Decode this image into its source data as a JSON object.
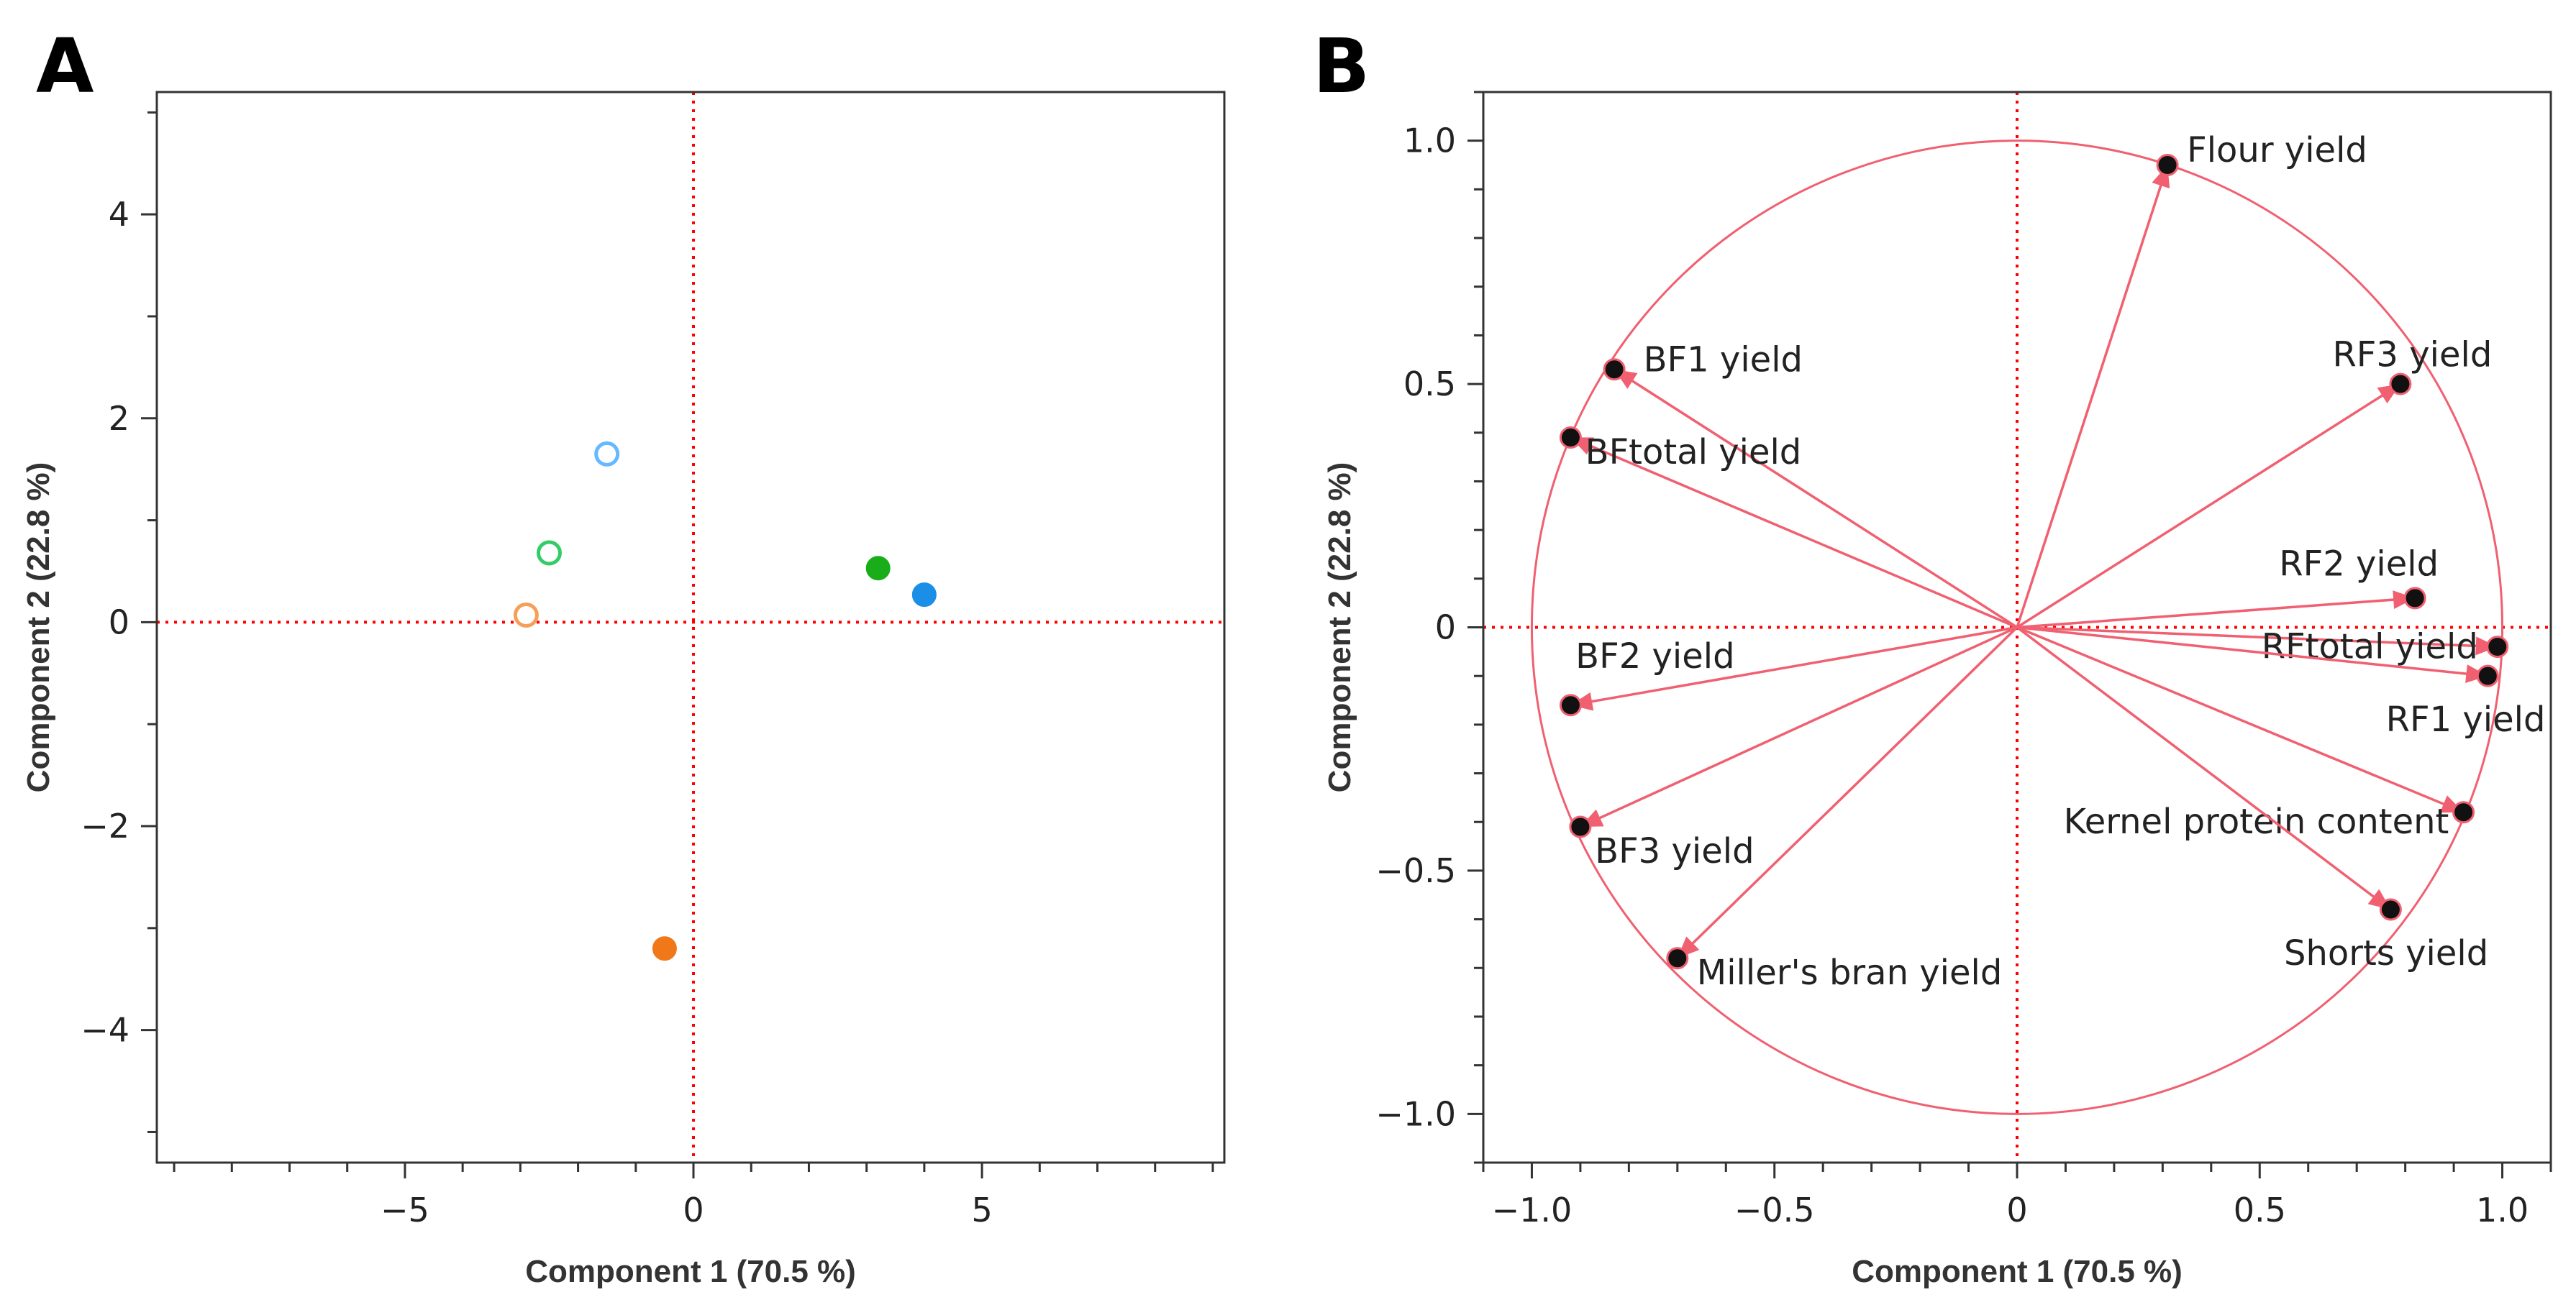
{
  "colors": {
    "frame": "#333333",
    "tick_label": "#222222",
    "axis_title": "#333333",
    "guide": "#ff0000",
    "loading_line": "#f06070",
    "loading_dot": "#111111",
    "circle": "#f06070"
  },
  "chart_data": [
    {
      "panel": "A",
      "type": "scatter",
      "title": "",
      "xlabel": "Component 1  (70.5 %)",
      "ylabel": "Component 2  (22.8 %)",
      "xlim": [
        -9.3,
        9.2
      ],
      "ylim": [
        -5.3,
        5.2
      ],
      "xticks": [
        -5,
        0,
        5
      ],
      "xtick_labels": [
        "−5",
        "0",
        "5"
      ],
      "yticks": [
        -4,
        -2,
        0,
        2,
        4
      ],
      "ytick_labels": [
        "−4",
        "−2",
        "0",
        "2",
        "4"
      ],
      "minor_step": 1,
      "grid": false,
      "reference_lines": {
        "x": 0,
        "y": 0
      },
      "series": [
        {
          "name": "light blue open",
          "x": [
            -1.5
          ],
          "y": [
            1.65
          ],
          "color": "#66b8ff",
          "marker": "open-circle"
        },
        {
          "name": "green open",
          "x": [
            -2.5
          ],
          "y": [
            0.68
          ],
          "color": "#33cc66",
          "marker": "open-circle"
        },
        {
          "name": "orange open",
          "x": [
            -2.9
          ],
          "y": [
            0.07
          ],
          "color": "#f5a05a",
          "marker": "open-circle"
        },
        {
          "name": "green filled",
          "x": [
            3.2
          ],
          "y": [
            0.53
          ],
          "color": "#1aad1a",
          "marker": "filled-circle"
        },
        {
          "name": "blue filled",
          "x": [
            4.0
          ],
          "y": [
            0.27
          ],
          "color": "#1b8fe8",
          "marker": "filled-circle"
        },
        {
          "name": "orange filled",
          "x": [
            -0.5
          ],
          "y": [
            -3.2
          ],
          "color": "#f07818",
          "marker": "filled-circle"
        }
      ]
    },
    {
      "panel": "B",
      "type": "scatter",
      "title": "",
      "xlabel": "Component 1  (70.5 %)",
      "ylabel": "Component 2  (22.8 %)",
      "xlim": [
        -1.1,
        1.1
      ],
      "ylim": [
        -1.1,
        1.1
      ],
      "xticks": [
        -1.0,
        -0.5,
        0,
        0.5,
        1.0
      ],
      "xtick_labels": [
        "−1.0",
        "−0.5",
        "0",
        "0.5",
        "1.0"
      ],
      "yticks": [
        -1.0,
        -0.5,
        0,
        0.5,
        1.0
      ],
      "ytick_labels": [
        "−1.0",
        "−0.5",
        "0",
        "0.5",
        "1.0"
      ],
      "minor_step": 0.1,
      "grid": false,
      "reference_lines": {
        "x": 0,
        "y": 0
      },
      "unit_circle": true,
      "loadings": [
        {
          "label": "Flour yield",
          "x": 0.31,
          "y": 0.95,
          "anchor": "start",
          "dx": 0.04,
          "dy": 0.03
        },
        {
          "label": "RF3 yield",
          "x": 0.79,
          "y": 0.5,
          "anchor": "start",
          "dx": -0.14,
          "dy": 0.06
        },
        {
          "label": "RF2 yield",
          "x": 0.82,
          "y": 0.06,
          "anchor": "start",
          "dx": -0.28,
          "dy": 0.07
        },
        {
          "label": "RFtotal yield",
          "x": 0.99,
          "y": -0.04,
          "anchor": "end",
          "dx": -0.04,
          "dy": 0.0
        },
        {
          "label": "RF1 yield",
          "x": 0.97,
          "y": -0.1,
          "anchor": "start",
          "dx": -0.21,
          "dy": -0.09
        },
        {
          "label": "Kernel protein content",
          "x": 0.92,
          "y": -0.38,
          "anchor": "end",
          "dx": -0.03,
          "dy": -0.02
        },
        {
          "label": "Shorts yield",
          "x": 0.77,
          "y": -0.58,
          "anchor": "start",
          "dx": -0.22,
          "dy": -0.09
        },
        {
          "label": "BF1 yield",
          "x": -0.83,
          "y": 0.53,
          "anchor": "start",
          "dx": 0.06,
          "dy": 0.02
        },
        {
          "label": "BFtotal yield",
          "x": -0.92,
          "y": 0.39,
          "anchor": "start",
          "dx": 0.03,
          "dy": -0.03
        },
        {
          "label": "BF2 yield",
          "x": -0.92,
          "y": -0.16,
          "anchor": "start",
          "dx": 0.01,
          "dy": 0.1
        },
        {
          "label": "BF3 yield",
          "x": -0.9,
          "y": -0.41,
          "anchor": "start",
          "dx": 0.03,
          "dy": -0.05
        },
        {
          "label": "Miller's bran yield",
          "x": -0.7,
          "y": -0.68,
          "anchor": "start",
          "dx": 0.04,
          "dy": -0.03
        }
      ]
    }
  ]
}
